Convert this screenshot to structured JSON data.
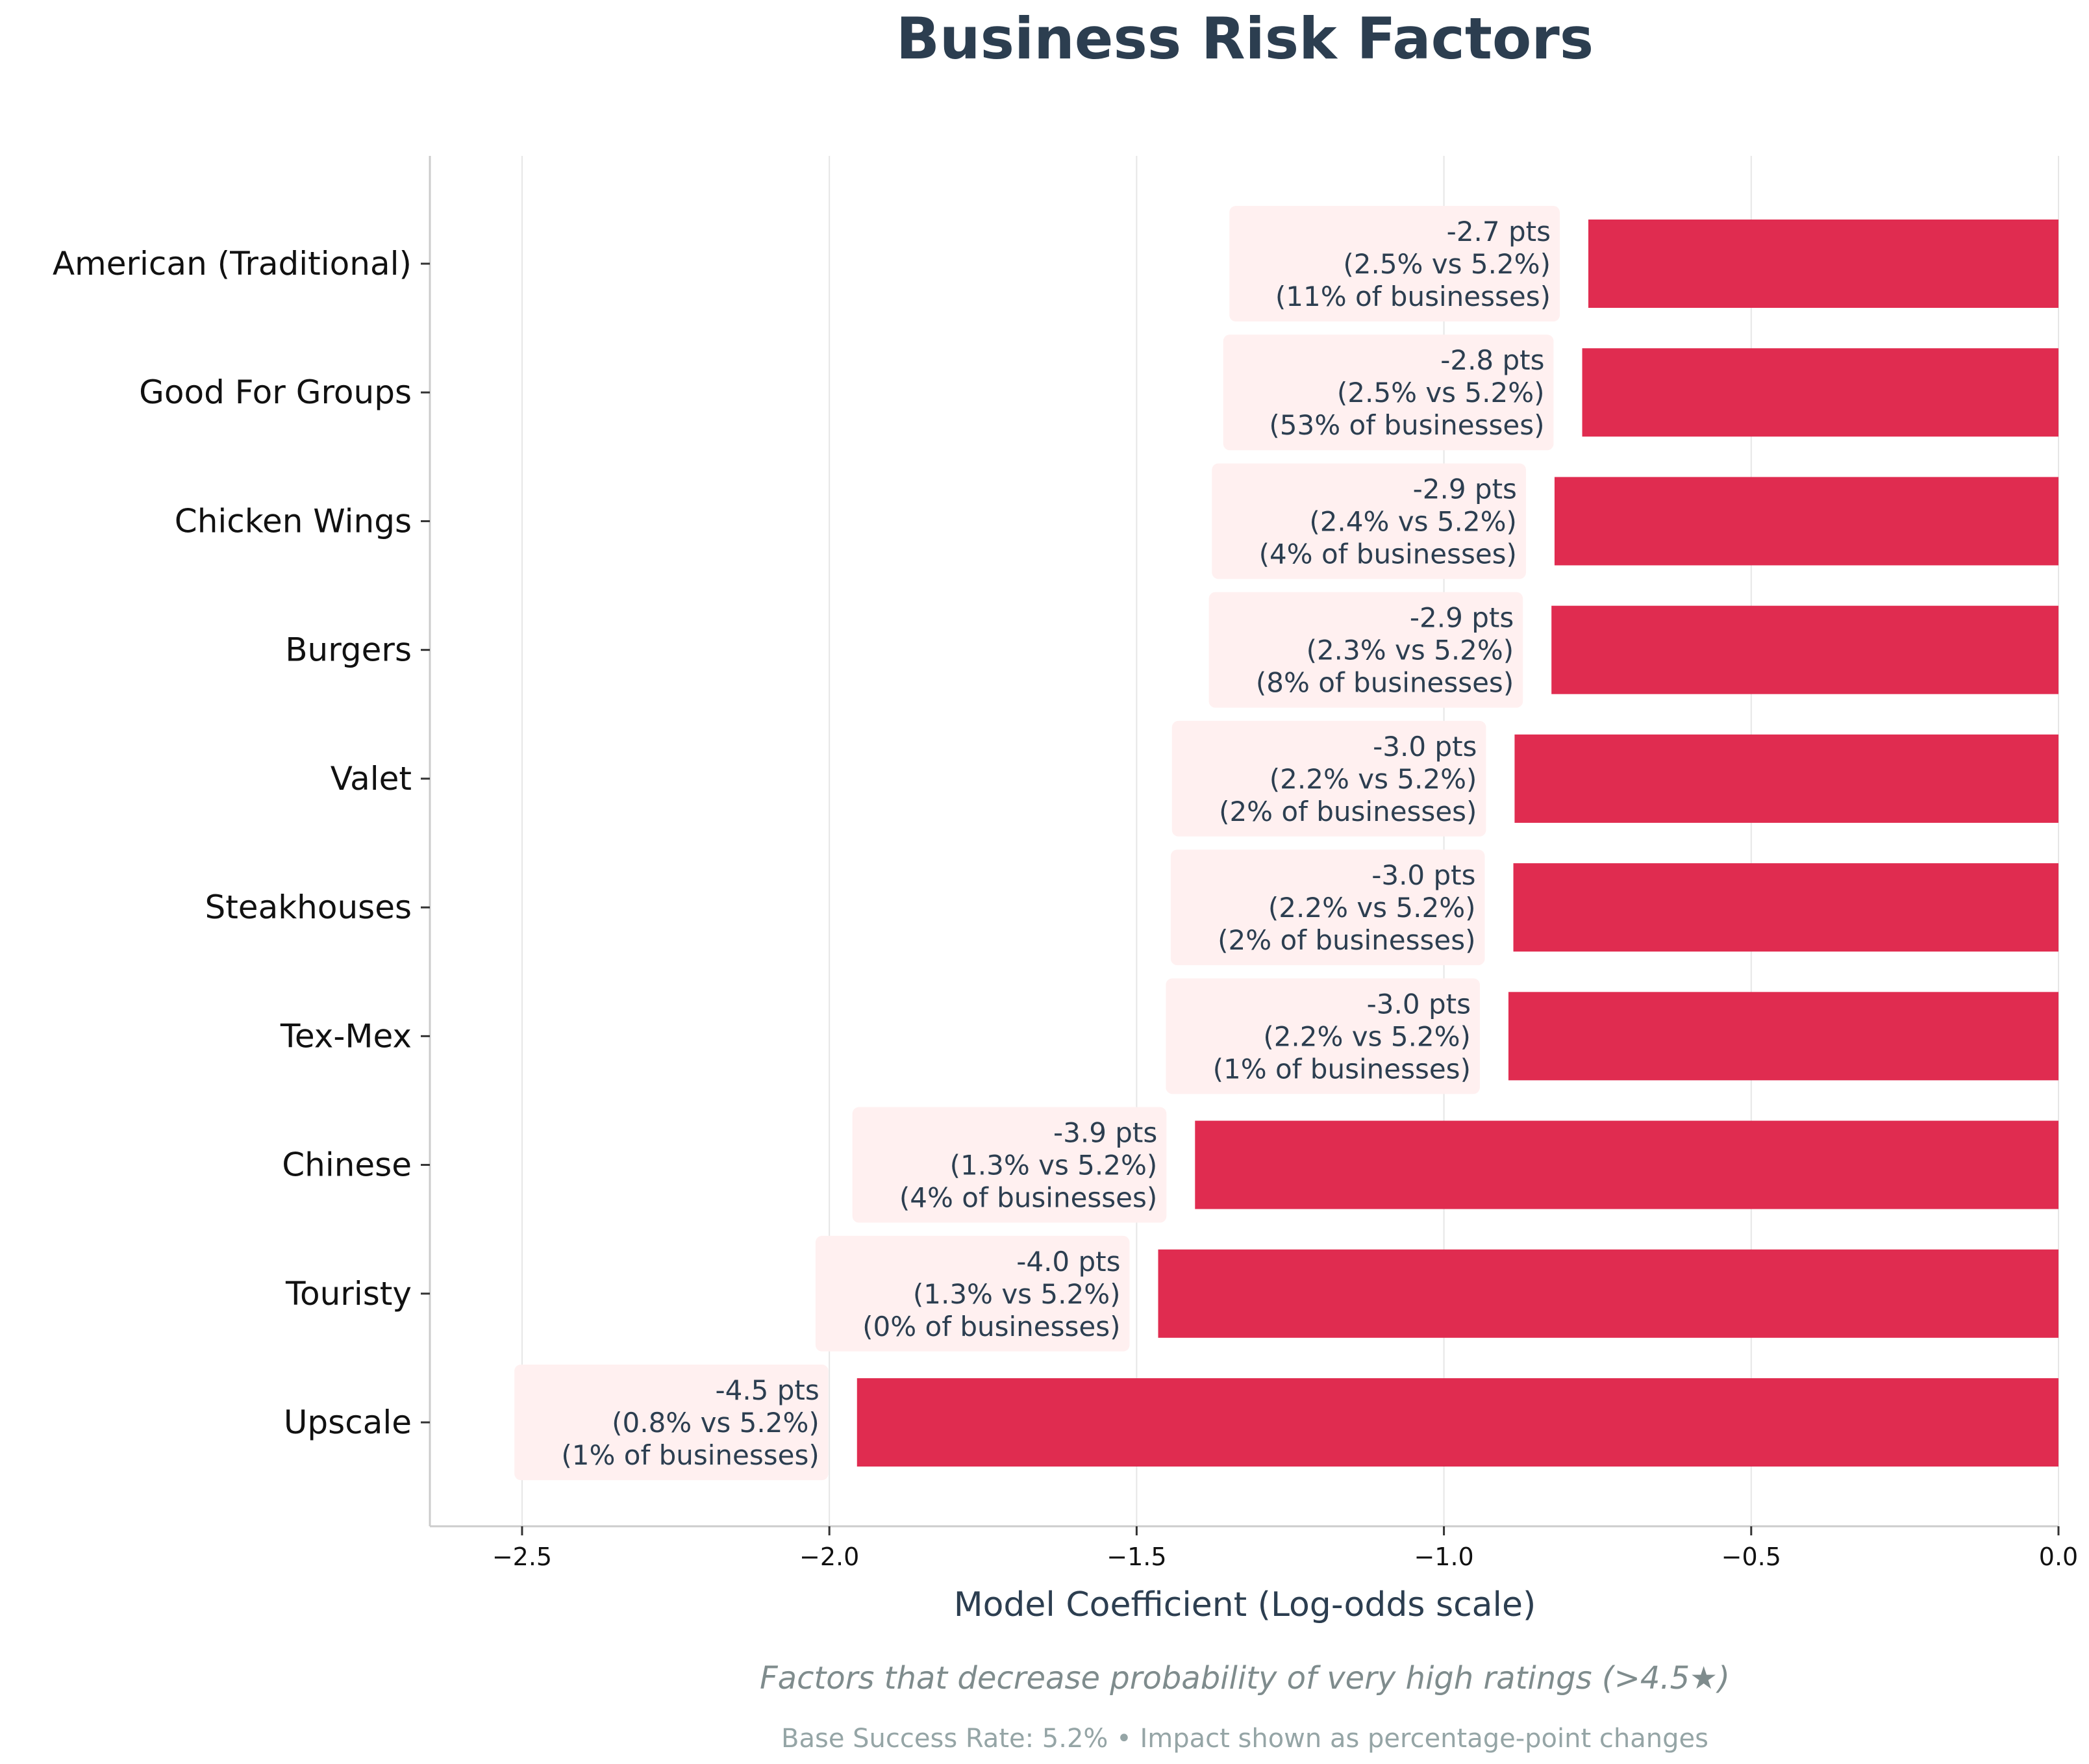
{
  "chart_data": {
    "type": "bar",
    "orientation": "horizontal",
    "title": "Business Risk Factors",
    "xlabel": "Model Coefficient (Log-odds scale)",
    "ylabel": "",
    "subtitle": "Factors that decrease probability of very high ratings (>4.5★)",
    "footnote": "Base Success Rate: 5.2% • Impact shown as percentage-point changes",
    "xlim": [
      -2.65,
      0.0
    ],
    "xticks": [
      -2.5,
      -2.0,
      -1.5,
      -1.0,
      -0.5,
      0.0
    ],
    "xtick_labels": [
      "−2.5",
      "−2.0",
      "−1.5",
      "−1.0",
      "−0.5",
      "0.0"
    ],
    "grid": "x",
    "bar_color": "#e02c50",
    "label_box_color": "#fff0f0",
    "text_color": "#2c3e50",
    "categories": [
      "American (Traditional)",
      "Good For Groups",
      "Chicken Wings",
      "Burgers",
      "Valet",
      "Steakhouses",
      "Tex-Mex",
      "Chinese",
      "Touristy",
      "Upscale"
    ],
    "values": [
      -0.765,
      -0.775,
      -0.82,
      -0.825,
      -0.885,
      -0.887,
      -0.895,
      -1.405,
      -1.465,
      -1.955
    ],
    "annotations": [
      [
        "-2.7 pts",
        "(2.5% vs 5.2%)",
        "(11% of businesses)"
      ],
      [
        "-2.8 pts",
        "(2.5% vs 5.2%)",
        "(53% of businesses)"
      ],
      [
        "-2.9 pts",
        "(2.4% vs 5.2%)",
        "(4% of businesses)"
      ],
      [
        "-2.9 pts",
        "(2.3% vs 5.2%)",
        "(8% of businesses)"
      ],
      [
        "-3.0 pts",
        "(2.2% vs 5.2%)",
        "(2% of businesses)"
      ],
      [
        "-3.0 pts",
        "(2.2% vs 5.2%)",
        "(2% of businesses)"
      ],
      [
        "-3.0 pts",
        "(2.2% vs 5.2%)",
        "(1% of businesses)"
      ],
      [
        "-3.9 pts",
        "(1.3% vs 5.2%)",
        "(4% of businesses)"
      ],
      [
        "-4.0 pts",
        "(1.3% vs 5.2%)",
        "(0% of businesses)"
      ],
      [
        "-4.5 pts",
        "(0.8% vs 5.2%)",
        "(1% of businesses)"
      ]
    ]
  }
}
